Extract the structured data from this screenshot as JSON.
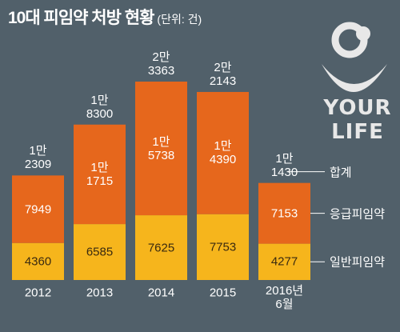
{
  "chart_data": {
    "type": "stacked-bar",
    "title": "10대 피임약 처방 현황",
    "subtitle": "(단위: 건)",
    "categories": [
      "2012",
      "2013",
      "2014",
      "2015",
      "2016년\n6월"
    ],
    "series": [
      {
        "name": "일반피임약",
        "color": "#f6b51c",
        "values": [
          4360,
          6585,
          7625,
          7753,
          4277
        ]
      },
      {
        "name": "응급피임약",
        "color": "#e6671c",
        "values": [
          7949,
          11715,
          15738,
          14390,
          7153
        ],
        "value_labels": [
          "7949",
          "1만\n1715",
          "1만\n5738",
          "1만\n4390",
          "7153"
        ]
      }
    ],
    "totals": {
      "name": "합계",
      "values": [
        12309,
        18300,
        23363,
        22143,
        11430
      ],
      "value_labels": [
        "1만\n2309",
        "1만\n8300",
        "2만\n3363",
        "2만\n2143",
        "1만\n1430"
      ]
    }
  },
  "logo": {
    "lines": [
      "YOUR",
      "LIFE"
    ]
  }
}
